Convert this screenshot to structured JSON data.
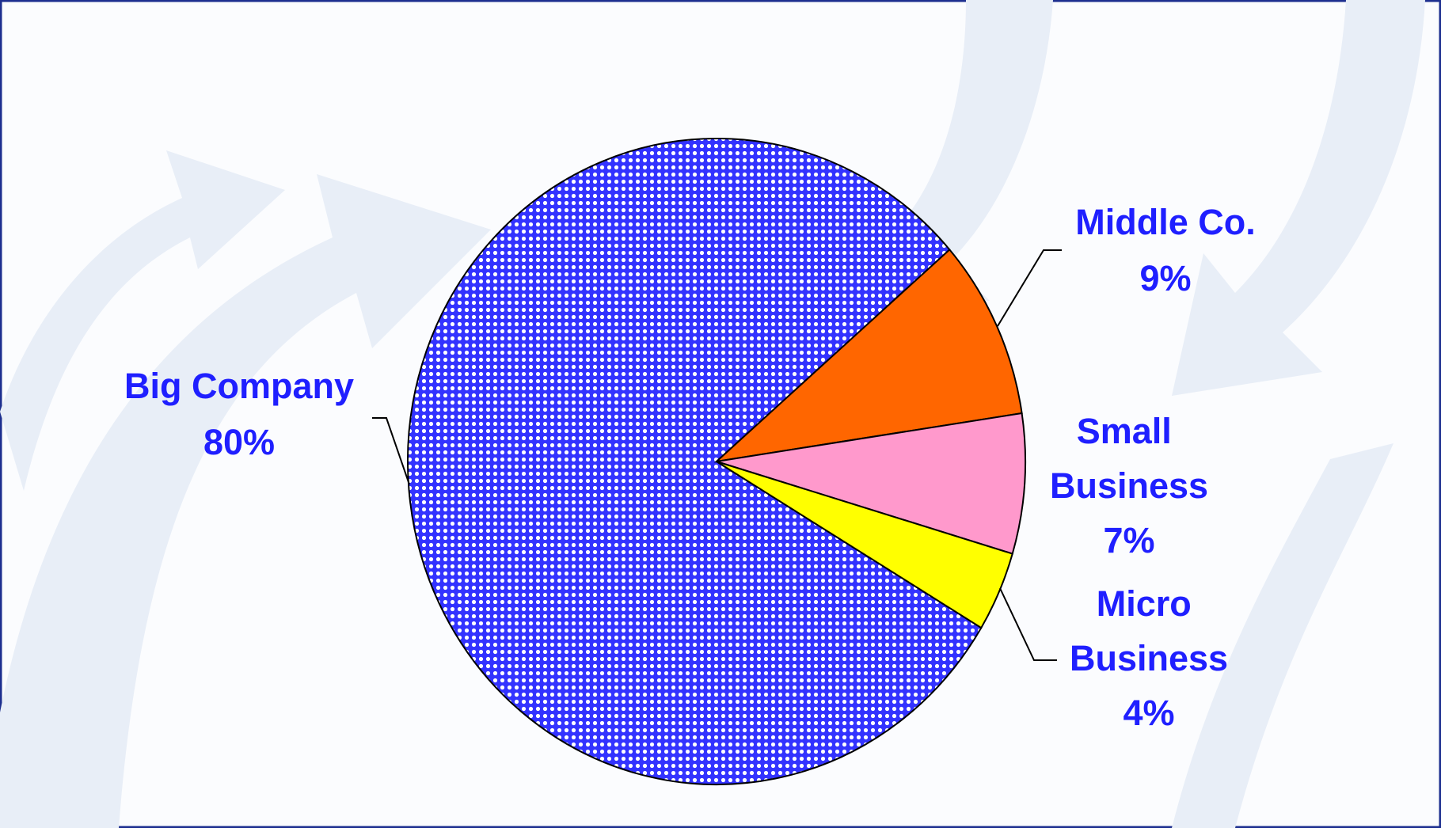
{
  "chart_data": {
    "type": "pie",
    "categories": [
      "Big Company",
      "Middle Co.",
      "Small Business",
      "Micro Business"
    ],
    "values": [
      80,
      9,
      7,
      4
    ],
    "value_labels": [
      "80%",
      "9%",
      "7%",
      "4%"
    ],
    "colors": [
      "#3333ff",
      "#ff6600",
      "#ff99cc",
      "#ffff00"
    ]
  }
}
